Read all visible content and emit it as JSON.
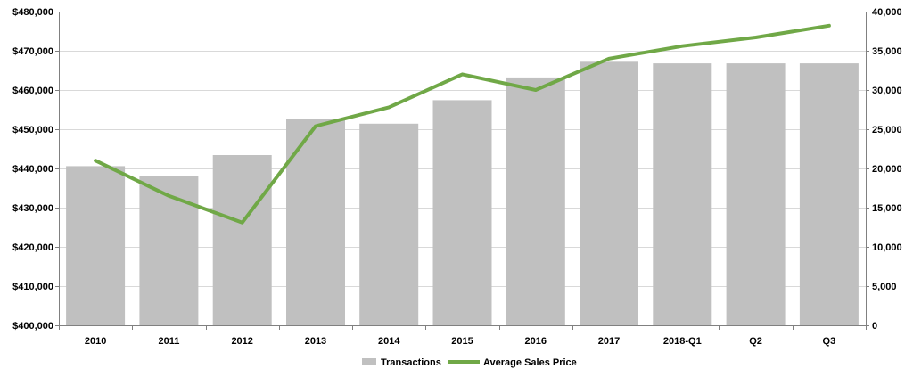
{
  "chart_data": {
    "type": "bar",
    "categories": [
      "2010",
      "2011",
      "2012",
      "2013",
      "2014",
      "2015",
      "2016",
      "2017",
      "2018-Q1",
      "Q2",
      "Q3"
    ],
    "series": [
      {
        "name": "Transactions",
        "type": "bar",
        "axis": "right",
        "color": "#c0c0c0",
        "values": [
          20300,
          19000,
          21700,
          26300,
          25700,
          28700,
          31600,
          33600,
          33400,
          33400,
          33400
        ]
      },
      {
        "name": "Average Sales Price",
        "type": "line",
        "axis": "left",
        "color": "#70a847",
        "values": [
          442000,
          433000,
          426200,
          450800,
          455600,
          464000,
          460000,
          468000,
          471200,
          473400,
          476400
        ]
      }
    ],
    "y_left": {
      "ylim": [
        400000,
        480000
      ],
      "ticks": [
        400000,
        410000,
        420000,
        430000,
        440000,
        450000,
        460000,
        470000,
        480000
      ],
      "tick_labels": [
        "$400,000",
        "$410,000",
        "$420,000",
        "$430,000",
        "$440,000",
        "$450,000",
        "$460,000",
        "$470,000",
        "$480,000"
      ]
    },
    "y_right": {
      "ylim": [
        0,
        40000
      ],
      "ticks": [
        0,
        5000,
        10000,
        15000,
        20000,
        25000,
        30000,
        35000,
        40000
      ],
      "tick_labels": [
        "0",
        "5,000",
        "10,000",
        "15,000",
        "20,000",
        "25,000",
        "30,000",
        "35,000",
        "40,000"
      ]
    },
    "title": "",
    "xlabel": "",
    "grid": "horizontal",
    "legend": {
      "position": "bottom-center",
      "entries": [
        "Transactions",
        "Average Sales Price"
      ]
    }
  }
}
